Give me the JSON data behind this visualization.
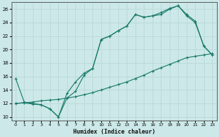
{
  "xlabel": "Humidex (Indice chaleur)",
  "bg_color": "#cce8e8",
  "grid_color": "#b8d8d8",
  "line_color": "#1a7a6a",
  "xlim": [
    -0.5,
    23.5
  ],
  "ylim": [
    9.5,
    27.0
  ],
  "xticks": [
    0,
    1,
    2,
    3,
    4,
    5,
    6,
    7,
    8,
    9,
    10,
    11,
    12,
    13,
    14,
    15,
    16,
    17,
    18,
    19,
    20,
    21,
    22,
    23
  ],
  "yticks": [
    10,
    12,
    14,
    16,
    18,
    20,
    22,
    24,
    26
  ],
  "line1_x": [
    0,
    1,
    2,
    3,
    4,
    5,
    6,
    7,
    8,
    9,
    10,
    11,
    12,
    13,
    14,
    15,
    16,
    17,
    18,
    19,
    20,
    21,
    22,
    23
  ],
  "line1_y": [
    15.7,
    12.2,
    12.0,
    11.8,
    11.2,
    10.0,
    13.5,
    15.2,
    16.5,
    17.2,
    21.5,
    22.0,
    22.8,
    23.5,
    25.2,
    24.8,
    25.0,
    25.2,
    26.0,
    26.5,
    25.0,
    24.0,
    20.5,
    19.2
  ],
  "line2_x": [
    0,
    1,
    2,
    3,
    4,
    5,
    6,
    7,
    8,
    9,
    10,
    11,
    12,
    13,
    14,
    15,
    16,
    17,
    18,
    19,
    20,
    21,
    22,
    23
  ],
  "line2_y": [
    12.0,
    12.1,
    11.9,
    11.8,
    11.2,
    10.0,
    12.8,
    13.8,
    16.2,
    17.2,
    21.5,
    22.0,
    22.8,
    23.5,
    25.2,
    24.8,
    25.0,
    25.5,
    26.1,
    26.5,
    25.2,
    24.2,
    20.5,
    19.2
  ],
  "line3_x": [
    0,
    1,
    2,
    3,
    4,
    5,
    6,
    7,
    8,
    9,
    10,
    11,
    12,
    13,
    14,
    15,
    16,
    17,
    18,
    19,
    20,
    21,
    22,
    23
  ],
  "line3_y": [
    12.0,
    12.1,
    12.2,
    12.4,
    12.5,
    12.6,
    12.8,
    13.0,
    13.3,
    13.6,
    14.0,
    14.4,
    14.8,
    15.2,
    15.7,
    16.2,
    16.8,
    17.3,
    17.8,
    18.3,
    18.8,
    19.0,
    19.2,
    19.4
  ]
}
